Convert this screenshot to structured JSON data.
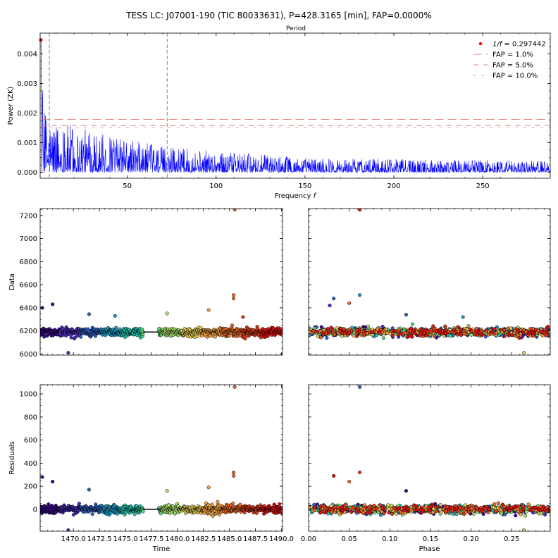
{
  "title": "TESS LC: J07001-190 (TIC 80033631), P=428.3165 [min], FAP=0.0000%",
  "colors": {
    "periodogram": "#0000ff",
    "peak": "#ff0000",
    "fap_line": "#e06060",
    "marker_line": "#999999",
    "model_line": "#000000",
    "point_edge": "#000000"
  },
  "chart_data": [
    {
      "id": "periodogram",
      "type": "line",
      "title": "",
      "top_axis_label": "Period",
      "xlabel": "Frequency $f$",
      "ylabel": "Power (ZK)",
      "xlim": [
        1,
        288
      ],
      "ylim": [
        -0.0002,
        0.0047
      ],
      "xticks": [
        50,
        100,
        150,
        200,
        250
      ],
      "yticks": [
        0.0,
        0.001,
        0.002,
        0.003,
        0.004
      ],
      "ytick_labels": [
        "0.000",
        "0.001",
        "0.002",
        "0.003",
        "0.004"
      ],
      "xtick_labels": [
        "50",
        "100",
        "150",
        "200",
        "250"
      ],
      "peak": {
        "x": 1.0,
        "y": 0.00447
      },
      "vlines_x": [
        6.2,
        72.5
      ],
      "fap_levels": [
        {
          "name": "FAP = 1.0%",
          "value": 0.00179,
          "style": "long-dash"
        },
        {
          "name": "FAP = 5.0%",
          "value": 0.00158,
          "style": "dash"
        },
        {
          "name": "FAP = 10.0%",
          "value": 0.0015,
          "style": "short-dash"
        }
      ],
      "series_envelope": [
        {
          "f": 1,
          "p": 0.0045
        },
        {
          "f": 3,
          "p": 0.0022
        },
        {
          "f": 6,
          "p": 0.0019
        },
        {
          "f": 10,
          "p": 0.0017
        },
        {
          "f": 20,
          "p": 0.0016
        },
        {
          "f": 30,
          "p": 0.0014
        },
        {
          "f": 50,
          "p": 0.0011
        },
        {
          "f": 70,
          "p": 0.0009
        },
        {
          "f": 100,
          "p": 0.0007
        },
        {
          "f": 150,
          "p": 0.0005
        },
        {
          "f": 200,
          "p": 0.00045
        },
        {
          "f": 288,
          "p": 0.0004
        }
      ],
      "legend": {
        "placement": "top-right",
        "entries": [
          "$1/f = 0.297442$",
          "FAP = 1.0%",
          "FAP = 5.0%",
          "FAP = 10.0%"
        ]
      }
    },
    {
      "id": "data-vs-time",
      "type": "scatter",
      "xlabel": "",
      "ylabel": "Data",
      "xlim": [
        1466.8,
        1490.1
      ],
      "ylim": [
        5990,
        7260
      ],
      "yticks": [
        6000,
        6200,
        6400,
        6600,
        6800,
        7000,
        7200
      ],
      "ytick_labels": [
        "6000",
        "6200",
        "6400",
        "6600",
        "6800",
        "7000",
        "7200"
      ],
      "baseline": 6190,
      "scatter": 45,
      "gap": [
        1476.7,
        1478.2
      ],
      "outliers": [
        {
          "x": 1467.0,
          "y": 6400
        },
        {
          "x": 1468.0,
          "y": 6430
        },
        {
          "x": 1469.5,
          "y": 6010
        },
        {
          "x": 1471.5,
          "y": 6345
        },
        {
          "x": 1474.0,
          "y": 6330
        },
        {
          "x": 1479.0,
          "y": 6350
        },
        {
          "x": 1483.0,
          "y": 6380
        },
        {
          "x": 1485.4,
          "y": 6510
        },
        {
          "x": 1485.4,
          "y": 6480
        },
        {
          "x": 1485.5,
          "y": 7250
        },
        {
          "x": 1486.3,
          "y": 6320
        }
      ]
    },
    {
      "id": "data-vs-phase",
      "type": "scatter",
      "xlabel": "",
      "ylabel": "",
      "xlim": [
        0.0,
        0.297442
      ],
      "ylim": [
        5990,
        7260
      ],
      "baseline": 6190,
      "scatter": 45,
      "outliers": [
        {
          "x": 0.031,
          "y": 6480
        },
        {
          "x": 0.026,
          "y": 6420
        },
        {
          "x": 0.05,
          "y": 6440
        },
        {
          "x": 0.063,
          "y": 6510
        },
        {
          "x": 0.063,
          "y": 7250
        },
        {
          "x": 0.12,
          "y": 6340
        },
        {
          "x": 0.265,
          "y": 6010
        },
        {
          "x": 0.19,
          "y": 6320
        }
      ]
    },
    {
      "id": "residuals-vs-time",
      "type": "scatter",
      "xlabel": "Time",
      "ylabel": "Residuals",
      "xlim": [
        1466.8,
        1490.1
      ],
      "ylim": [
        -190,
        1080
      ],
      "xticks": [
        1470.0,
        1472.5,
        1475.0,
        1477.5,
        1480.0,
        1482.5,
        1485.0,
        1487.5,
        1490.0
      ],
      "xtick_labels": [
        "1470.0",
        "1472.5",
        "1475.0",
        "1477.5",
        "1480.0",
        "1482.5",
        "1485.0",
        "1487.5",
        "1490.0"
      ],
      "yticks": [
        0,
        200,
        400,
        600,
        800,
        1000
      ],
      "ytick_labels": [
        "0",
        "200",
        "400",
        "600",
        "800",
        "1000"
      ],
      "baseline": 0,
      "scatter": 45,
      "gap": [
        1476.7,
        1478.2
      ],
      "outliers": [
        {
          "x": 1467.0,
          "y": 280
        },
        {
          "x": 1468.0,
          "y": 240
        },
        {
          "x": 1469.5,
          "y": -180
        },
        {
          "x": 1471.5,
          "y": 170
        },
        {
          "x": 1479.0,
          "y": 160
        },
        {
          "x": 1483.0,
          "y": 190
        },
        {
          "x": 1485.4,
          "y": 320
        },
        {
          "x": 1485.4,
          "y": 290
        },
        {
          "x": 1485.5,
          "y": 1060
        }
      ]
    },
    {
      "id": "residuals-vs-phase",
      "type": "scatter",
      "xlabel": "Phase",
      "ylabel": "",
      "xlim": [
        0.0,
        0.297442
      ],
      "ylim": [
        -190,
        1080
      ],
      "xticks": [
        0.0,
        0.05,
        0.1,
        0.15,
        0.2,
        0.25
      ],
      "xtick_labels": [
        "0.00",
        "0.05",
        "0.10",
        "0.15",
        "0.20",
        "0.25"
      ],
      "baseline": 0,
      "scatter": 45,
      "outliers": [
        {
          "x": 0.031,
          "y": 290
        },
        {
          "x": 0.05,
          "y": 240
        },
        {
          "x": 0.063,
          "y": 320
        },
        {
          "x": 0.063,
          "y": 1060
        },
        {
          "x": 0.12,
          "y": 160
        },
        {
          "x": 0.265,
          "y": -180
        }
      ]
    }
  ]
}
